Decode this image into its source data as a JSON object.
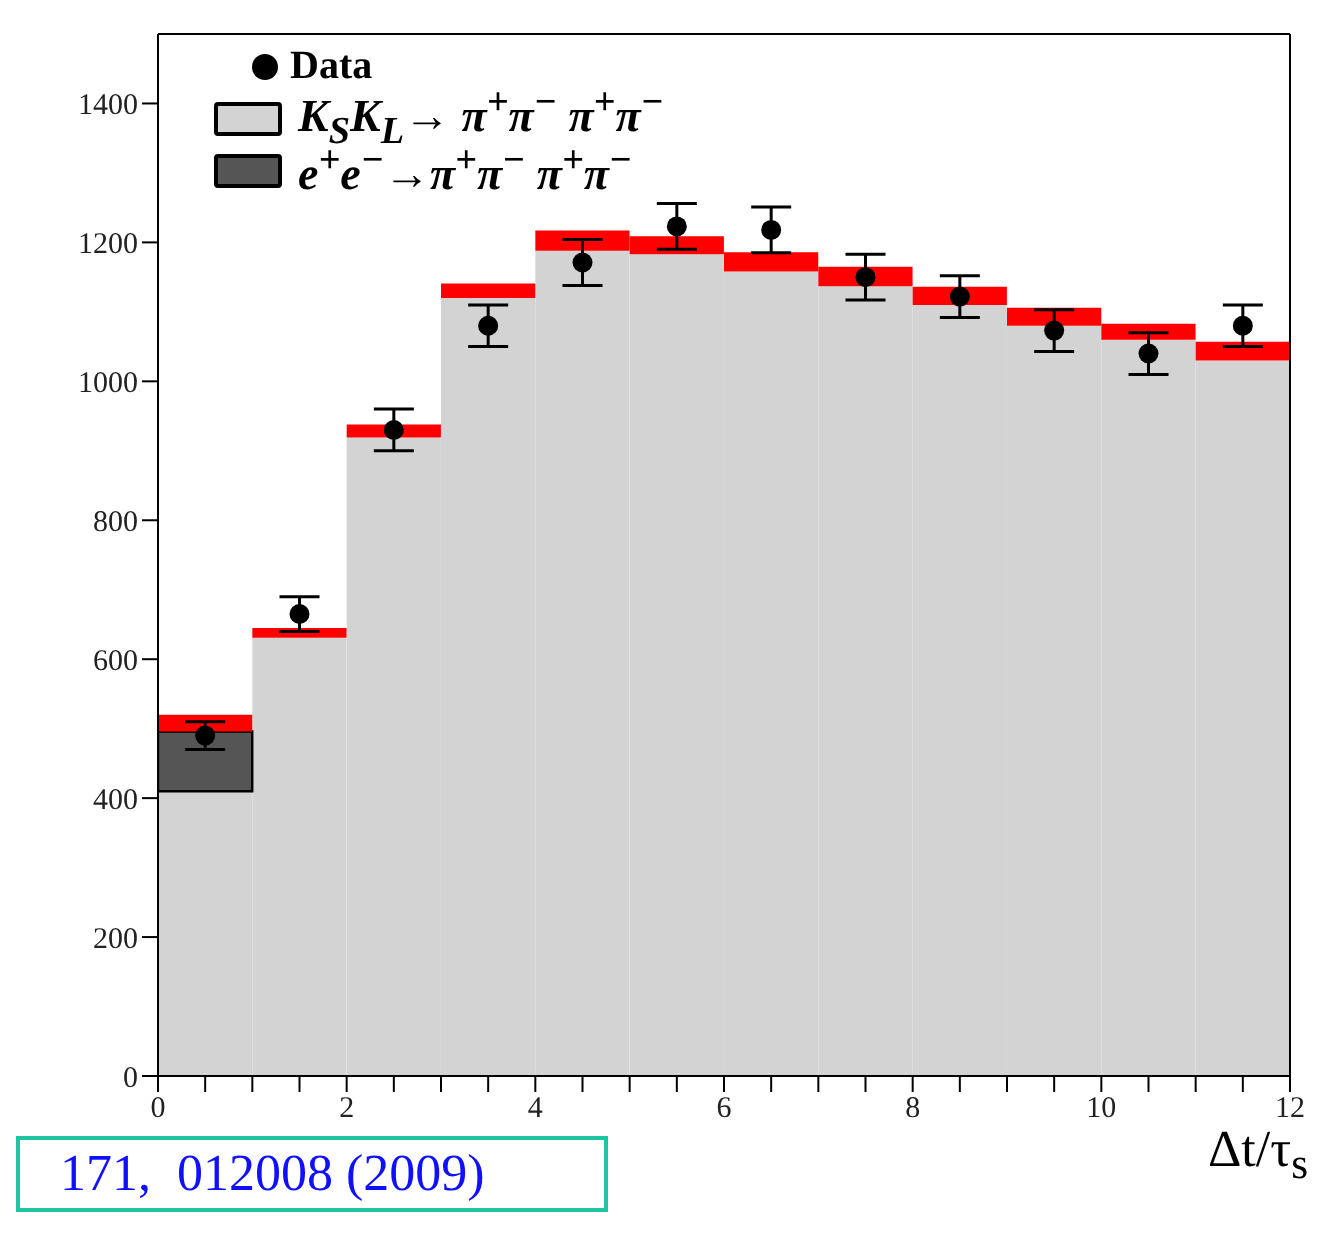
{
  "chart_data": {
    "type": "bar",
    "x": [
      0.5,
      1.5,
      2.5,
      3.5,
      4.5,
      5.5,
      6.5,
      7.5,
      8.5,
      9.5,
      10.5,
      11.5
    ],
    "xlim": [
      0,
      12
    ],
    "xticks": [
      0,
      {
        "value": 0.5,
        "label": null
      },
      {
        "value": 1,
        "label": null
      },
      {
        "value": 1.5,
        "label": null
      },
      2,
      {
        "value": 2.5,
        "label": null
      },
      {
        "value": 3,
        "label": null
      },
      {
        "value": 3.5,
        "label": null
      },
      4,
      {
        "value": 4.5,
        "label": null
      },
      {
        "value": 5,
        "label": null
      },
      {
        "value": 5.5,
        "label": null
      },
      6,
      {
        "value": 6.5,
        "label": null
      },
      {
        "value": 7,
        "label": null
      },
      {
        "value": 7.5,
        "label": null
      },
      8,
      {
        "value": 8.5,
        "label": null
      },
      {
        "value": 9,
        "label": null
      },
      {
        "value": 9.5,
        "label": null
      },
      10,
      {
        "value": 10.5,
        "label": null
      },
      {
        "value": 11,
        "label": null
      },
      {
        "value": 11.5,
        "label": null
      },
      12
    ],
    "ylim": [
      0,
      1500
    ],
    "yticks": [
      0,
      200,
      400,
      600,
      800,
      1000,
      1200,
      1400
    ],
    "xlabel": "Δt/τ$_{s}$",
    "stacked": true,
    "legend": "top left",
    "marker": "circle",
    "annotations": [
      "171,  012008 (2009)"
    ],
    "series": [
      {
        "name": "K$_{S}$K$_{L}$→ π$^{+}$π$^{−}$ π$^{+}$π$^{−}$",
        "color": "#d3d3d3",
        "values": [
          410,
          631,
          919,
          1120,
          1188,
          1183,
          1158,
          1137,
          1110,
          1080,
          1060,
          1030
        ]
      },
      {
        "name": "e$^{+}$e$^{−}$→π$^{+}$π$^{−}$ π$^{+}$π$^{−}$",
        "color": "#555555",
        "values": [
          86,
          null,
          null,
          null,
          null,
          null,
          null,
          null,
          null,
          null,
          null,
          null
        ]
      },
      {
        "color": "#ff0000",
        "values": [
          24,
          14,
          19,
          21,
          29,
          26,
          28,
          28,
          26,
          26,
          23,
          27
        ]
      },
      {
        "name": "Data",
        "type": "scatter",
        "color": "#000000",
        "x": [
          0.5,
          1.5,
          2.5,
          3.5,
          4.5,
          5.5,
          6.5,
          7.5,
          8.5,
          9.5,
          10.5,
          11.5
        ],
        "values": [
          490,
          665,
          930,
          1080,
          1171,
          1223,
          1218,
          1150,
          1122,
          1073,
          1040,
          1080
        ],
        "errors": [
          20,
          25,
          30,
          30,
          33,
          33,
          33,
          33,
          30,
          30,
          30,
          30
        ]
      }
    ]
  }
}
